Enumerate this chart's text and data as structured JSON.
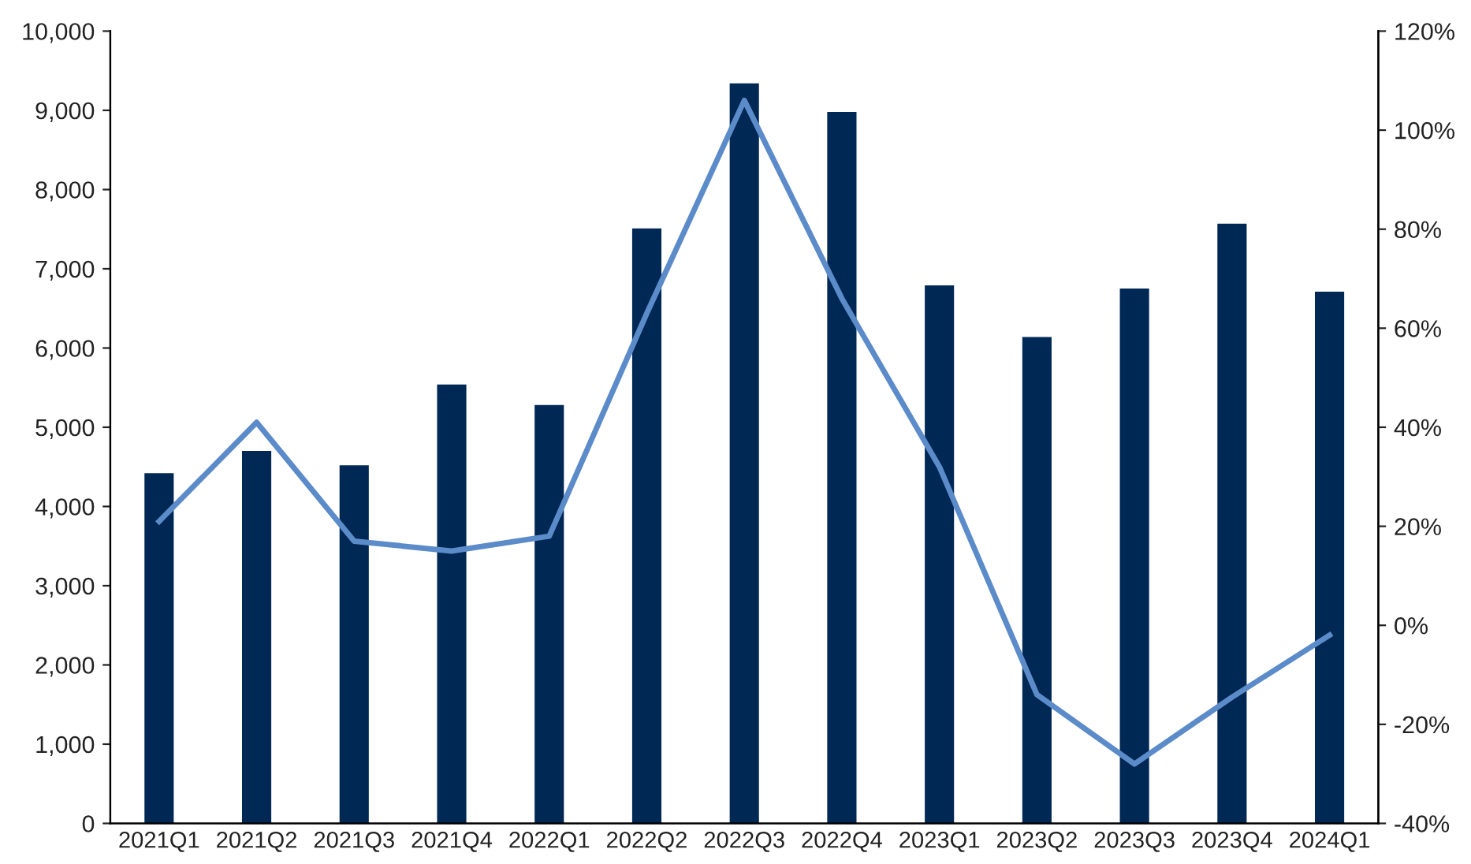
{
  "chart_data": {
    "type": "bar",
    "categories": [
      "2021Q1",
      "2021Q2",
      "2021Q3",
      "2021Q4",
      "2022Q1",
      "2022Q2",
      "2022Q3",
      "2022Q4",
      "2023Q1",
      "2023Q2",
      "2023Q3",
      "2023Q4",
      "2024Q1"
    ],
    "series": [
      {
        "color": "#002855",
        "values": [
          4420,
          4700,
          4520,
          5540,
          5280,
          7510,
          9340,
          8980,
          6790,
          6140,
          6750,
          7570,
          6710
        ]
      },
      {
        "type": "line",
        "axis": "y2",
        "color": "#5b8bc9",
        "values": [
          21,
          41,
          17,
          15,
          18,
          63,
          106,
          66,
          32,
          -14,
          -28,
          -14.5,
          -2
        ]
      }
    ],
    "ylim": [
      0,
      10000
    ],
    "yticks": [
      {
        "value": 0,
        "label": "0"
      },
      {
        "value": 1000,
        "label": "1,000"
      },
      {
        "value": 2000,
        "label": "2,000"
      },
      {
        "value": 3000,
        "label": "3,000"
      },
      {
        "value": 4000,
        "label": "4,000"
      },
      {
        "value": 5000,
        "label": "5,000"
      },
      {
        "value": 6000,
        "label": "6,000"
      },
      {
        "value": 7000,
        "label": "7,000"
      },
      {
        "value": 8000,
        "label": "8,000"
      },
      {
        "value": 9000,
        "label": "9,000"
      },
      {
        "value": 10000,
        "label": "10,000"
      }
    ],
    "y2lim": [
      -40,
      120
    ],
    "y2ticks": [
      {
        "value": -40,
        "label": "-40%"
      },
      {
        "value": -20,
        "label": "-20%"
      },
      {
        "value": 0,
        "label": "0%"
      },
      {
        "value": 20,
        "label": "20%"
      },
      {
        "value": 40,
        "label": "40%"
      },
      {
        "value": 60,
        "label": "60%"
      },
      {
        "value": 80,
        "label": "80%"
      },
      {
        "value": 100,
        "label": "100%"
      },
      {
        "value": 120,
        "label": "120%"
      }
    ],
    "grid": false,
    "marker": "none",
    "line_style": "solid"
  }
}
